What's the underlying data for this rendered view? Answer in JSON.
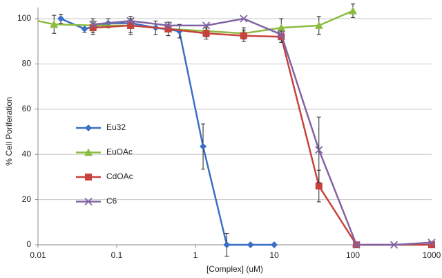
{
  "chart_data": {
    "type": "line",
    "x_label": "[Complex] (uM)",
    "y_label": "% Cell Poriferation",
    "xlim": [
      0.01,
      1000
    ],
    "xticks": [
      0.01,
      0.1,
      1,
      10,
      100,
      1000
    ],
    "xscale": "log",
    "ylim": [
      0,
      105
    ],
    "yticks": [
      0,
      20,
      40,
      60,
      80,
      100
    ],
    "grid": true,
    "legend": "left",
    "series": [
      {
        "name": "Eu32",
        "color": "#3a6fc4",
        "marker": "diamond",
        "x": [
          0.0195,
          0.039,
          0.078,
          0.156,
          0.3125,
          0.625,
          1.25,
          2.5,
          5,
          10
        ],
        "values": [
          100,
          95.5,
          98,
          98,
          96,
          94.5,
          43.5,
          0,
          0,
          0
        ],
        "errors": [
          2,
          1.5,
          2,
          2,
          3,
          3,
          10,
          5,
          null,
          null
        ]
      },
      {
        "name": "EuOAc",
        "color": "#8cbc3f",
        "marker": "triangle",
        "x": [
          0.01,
          0.016,
          0.05,
          0.15,
          0.45,
          1.37,
          4.1,
          12.3,
          37,
          100
        ],
        "values": [
          99,
          97.5,
          97,
          97,
          95.5,
          94.5,
          93.5,
          96,
          97,
          103.5
        ],
        "errors": [
          null,
          4,
          3,
          4,
          3,
          2.5,
          2.5,
          4,
          4,
          3
        ]
      },
      {
        "name": "CdOAc",
        "color": "#c8413c",
        "marker": "square",
        "x": [
          0.05,
          0.15,
          0.45,
          1.37,
          4.1,
          12.3,
          37,
          111,
          1000
        ],
        "values": [
          96,
          97,
          95.5,
          93.5,
          92.5,
          92,
          26,
          0,
          0
        ],
        "errors": [
          3,
          3,
          3,
          2.5,
          2.5,
          2.5,
          7,
          null,
          null
        ]
      },
      {
        "name": "C6",
        "color": "#8064a2",
        "marker": "x",
        "x": [
          0.05,
          0.15,
          0.45,
          1.37,
          4.1,
          12.3,
          37,
          111,
          333,
          1000
        ],
        "values": [
          97.5,
          99,
          97,
          97,
          100,
          93,
          42,
          0,
          0,
          1
        ],
        "errors": [
          null,
          null,
          null,
          null,
          null,
          null,
          14.5,
          null,
          null,
          null
        ]
      }
    ]
  }
}
